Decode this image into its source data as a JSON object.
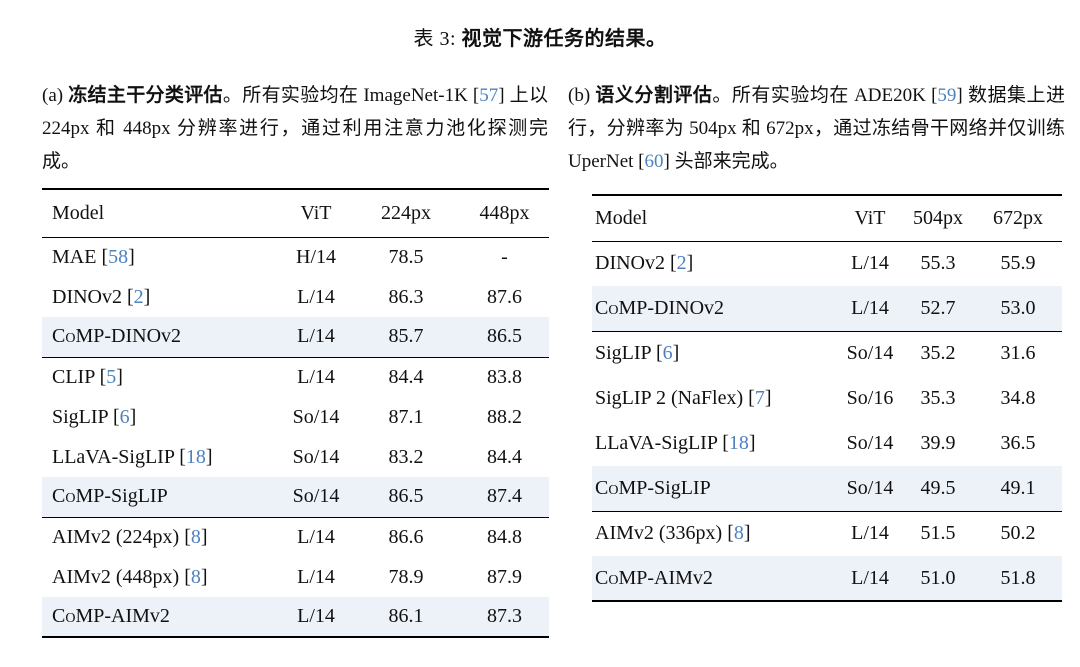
{
  "title": {
    "prefix": "表 3: ",
    "bold": "视觉下游任务的结果。"
  },
  "colors": {
    "citation_blue": "#4d82bf",
    "row_highlight": "#edf1f8",
    "rule_black": "#000000"
  },
  "subtable_a": {
    "caption_segments": [
      {
        "t": "(a) "
      },
      {
        "t": "冻结主干分类评估",
        "b": true
      },
      {
        "t": "。所有实验均在 ImageNet-1K "
      },
      {
        "t": "57",
        "cite": true
      },
      {
        "t": " 上以 224px 和 448px 分辨率进行，通过利用注意力池化探测完成。"
      }
    ],
    "table": {
      "columns": [
        "Model",
        "ViT",
        "224px",
        "448px"
      ],
      "groups": [
        {
          "rows": [
            {
              "model": [
                {
                  "t": "MAE "
                },
                {
                  "t": "58",
                  "cite": true
                }
              ],
              "vit": "H/14",
              "r1": "78.5",
              "r2": "-"
            },
            {
              "model": [
                {
                  "t": "DINOv2 "
                },
                {
                  "t": "2",
                  "cite": true
                }
              ],
              "vit": "L/14",
              "r1": "86.3",
              "r2": "87.6"
            },
            {
              "model": [
                {
                  "t": "C"
                },
                {
                  "t": "o",
                  "sc": true
                },
                {
                  "t": "MP-DINOv2"
                }
              ],
              "vit": "L/14",
              "r1": "85.7",
              "r2": "86.5",
              "highlight": true
            }
          ]
        },
        {
          "rows": [
            {
              "model": [
                {
                  "t": "CLIP "
                },
                {
                  "t": "5",
                  "cite": true
                }
              ],
              "vit": "L/14",
              "r1": "84.4",
              "r2": "83.8"
            },
            {
              "model": [
                {
                  "t": "SigLIP "
                },
                {
                  "t": "6",
                  "cite": true
                }
              ],
              "vit": "So/14",
              "r1": "87.1",
              "r2": "88.2"
            },
            {
              "model": [
                {
                  "t": "LLaVA-SigLIP "
                },
                {
                  "t": "18",
                  "cite": true
                }
              ],
              "vit": "So/14",
              "r1": "83.2",
              "r2": "84.4"
            },
            {
              "model": [
                {
                  "t": "C"
                },
                {
                  "t": "o",
                  "sc": true
                },
                {
                  "t": "MP-SigLIP"
                }
              ],
              "vit": "So/14",
              "r1": "86.5",
              "r2": "87.4",
              "highlight": true
            }
          ]
        },
        {
          "rows": [
            {
              "model": [
                {
                  "t": "AIMv2 (224px) "
                },
                {
                  "t": "8",
                  "cite": true
                }
              ],
              "vit": "L/14",
              "r1": "86.6",
              "r2": "84.8"
            },
            {
              "model": [
                {
                  "t": "AIMv2 (448px) "
                },
                {
                  "t": "8",
                  "cite": true
                }
              ],
              "vit": "L/14",
              "r1": "78.9",
              "r2": "87.9"
            },
            {
              "model": [
                {
                  "t": "C"
                },
                {
                  "t": "o",
                  "sc": true
                },
                {
                  "t": "MP-AIMv2"
                }
              ],
              "vit": "L/14",
              "r1": "86.1",
              "r2": "87.3",
              "highlight": true
            }
          ]
        }
      ]
    }
  },
  "subtable_b": {
    "caption_segments": [
      {
        "t": "(b) "
      },
      {
        "t": "语义分割评估",
        "b": true
      },
      {
        "t": "。所有实验均在 ADE20K "
      },
      {
        "t": "59",
        "cite": true
      },
      {
        "t": " 数据集上进行，分辨率为 504px 和 672px，通过冻结骨干网络并仅训练 UperNet "
      },
      {
        "t": "60",
        "cite": true
      },
      {
        "t": " 头部来完成。"
      }
    ],
    "table": {
      "columns": [
        "Model",
        "ViT",
        "504px",
        "672px"
      ],
      "groups": [
        {
          "rows": [
            {
              "model": [
                {
                  "t": "DINOv2 "
                },
                {
                  "t": "2",
                  "cite": true
                }
              ],
              "vit": "L/14",
              "r1": "55.3",
              "r2": "55.9"
            },
            {
              "model": [
                {
                  "t": "C"
                },
                {
                  "t": "o",
                  "sc": true
                },
                {
                  "t": "MP-DINOv2"
                }
              ],
              "vit": "L/14",
              "r1": "52.7",
              "r2": "53.0",
              "highlight": true
            }
          ]
        },
        {
          "rows": [
            {
              "model": [
                {
                  "t": "SigLIP "
                },
                {
                  "t": "6",
                  "cite": true
                }
              ],
              "vit": "So/14",
              "r1": "35.2",
              "r2": "31.6"
            },
            {
              "model": [
                {
                  "t": "SigLIP 2 (NaFlex) "
                },
                {
                  "t": "7",
                  "cite": true
                }
              ],
              "vit": "So/16",
              "r1": "35.3",
              "r2": "34.8"
            },
            {
              "model": [
                {
                  "t": "LLaVA-SigLIP "
                },
                {
                  "t": "18",
                  "cite": true
                }
              ],
              "vit": "So/14",
              "r1": "39.9",
              "r2": "36.5"
            },
            {
              "model": [
                {
                  "t": "C"
                },
                {
                  "t": "o",
                  "sc": true
                },
                {
                  "t": "MP-SigLIP"
                }
              ],
              "vit": "So/14",
              "r1": "49.5",
              "r2": "49.1",
              "highlight": true
            }
          ]
        },
        {
          "rows": [
            {
              "model": [
                {
                  "t": "AIMv2 (336px) "
                },
                {
                  "t": "8",
                  "cite": true
                }
              ],
              "vit": "L/14",
              "r1": "51.5",
              "r2": "50.2"
            },
            {
              "model": [
                {
                  "t": "C"
                },
                {
                  "t": "o",
                  "sc": true
                },
                {
                  "t": "MP-AIMv2"
                }
              ],
              "vit": "L/14",
              "r1": "51.0",
              "r2": "51.8",
              "highlight": true
            }
          ]
        }
      ]
    }
  }
}
